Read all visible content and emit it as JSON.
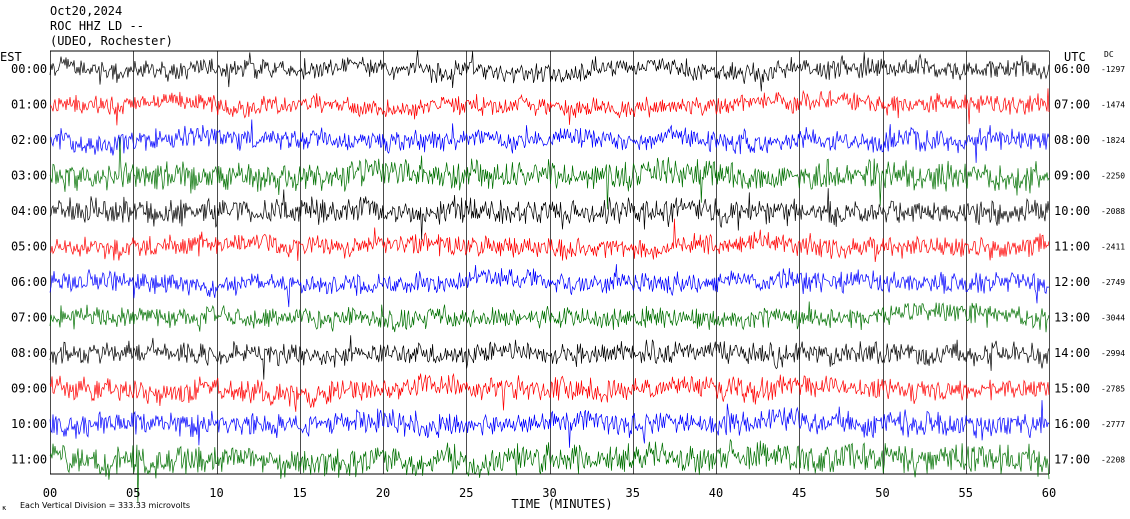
{
  "header": {
    "date": "Oct20,2024",
    "station_line": "ROC HHZ LD --",
    "location_line": "(UDEO, Rochester)"
  },
  "labels": {
    "left_tz": "EST",
    "right_tz": "UTC",
    "dc_header": "DC",
    "footer_left": "Each Vertical Division =  333.33 microvolts"
  },
  "colors": {
    "trace_cycle": [
      "#000000",
      "#ff0000",
      "#0000ff",
      "#007000"
    ],
    "grid": "#000000",
    "background": "#ffffff"
  },
  "chart_data": {
    "type": "line",
    "subtype": "helicorder",
    "title": "",
    "xlabel": "TIME (MINUTES)",
    "ylabel": "",
    "xlim": [
      0,
      60
    ],
    "x_ticks": [
      0,
      5,
      10,
      15,
      20,
      25,
      30,
      35,
      40,
      45,
      50,
      55,
      60
    ],
    "x_tick_labels": [
      "00",
      "05",
      "10",
      "15",
      "20",
      "25",
      "30",
      "35",
      "40",
      "45",
      "50",
      "55",
      "60"
    ],
    "vertical_gridlines": true,
    "rows": [
      {
        "est": "00:00",
        "utc": "06:00",
        "dc": "-1297",
        "color": "#000000",
        "relative_activity": 1.0
      },
      {
        "est": "01:00",
        "utc": "07:00",
        "dc": "-1474",
        "color": "#ff0000",
        "relative_activity": 1.0
      },
      {
        "est": "02:00",
        "utc": "08:00",
        "dc": "-1824",
        "color": "#0000ff",
        "relative_activity": 1.1
      },
      {
        "est": "03:00",
        "utc": "09:00",
        "dc": "-2250",
        "color": "#007000",
        "relative_activity": 1.5
      },
      {
        "est": "04:00",
        "utc": "10:00",
        "dc": "-2088",
        "color": "#000000",
        "relative_activity": 1.3
      },
      {
        "est": "05:00",
        "utc": "11:00",
        "dc": "-2411",
        "color": "#ff0000",
        "relative_activity": 1.1
      },
      {
        "est": "06:00",
        "utc": "12:00",
        "dc": "-2749",
        "color": "#0000ff",
        "relative_activity": 1.1
      },
      {
        "est": "07:00",
        "utc": "13:00",
        "dc": "-3044",
        "color": "#007000",
        "relative_activity": 1.1
      },
      {
        "est": "08:00",
        "utc": "14:00",
        "dc": "-2994",
        "color": "#000000",
        "relative_activity": 1.2
      },
      {
        "est": "09:00",
        "utc": "15:00",
        "dc": "-2785",
        "color": "#ff0000",
        "relative_activity": 1.2
      },
      {
        "est": "10:00",
        "utc": "16:00",
        "dc": "-2777",
        "color": "#0000ff",
        "relative_activity": 1.3
      },
      {
        "est": "11:00",
        "utc": "17:00",
        "dc": "-2208",
        "color": "#007000",
        "relative_activity": 1.6
      }
    ]
  }
}
